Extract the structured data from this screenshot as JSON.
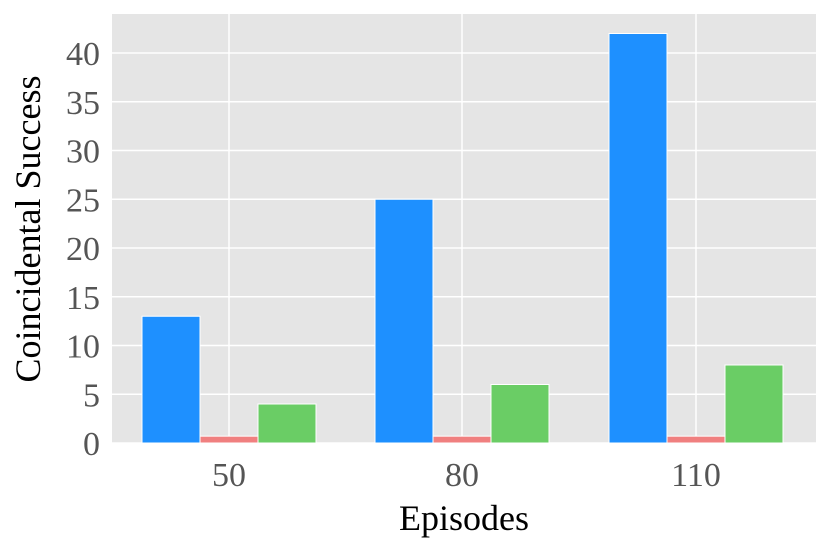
{
  "chart_data": {
    "type": "bar",
    "xlabel": "Episodes",
    "ylabel": "Coincidental Success",
    "categories": [
      "50",
      "80",
      "110"
    ],
    "series": [
      {
        "values": [
          13,
          25,
          42
        ],
        "color": "#1e90ff"
      },
      {
        "values": [
          0.7,
          0.7,
          0.7
        ],
        "color": "#f08080"
      },
      {
        "values": [
          4,
          6,
          8
        ],
        "color": "#6acd65"
      }
    ],
    "ylim": [
      0,
      44
    ],
    "yticks": [
      0,
      5,
      10,
      15,
      20,
      25,
      30,
      35,
      40
    ],
    "grid": true,
    "legend": "none"
  }
}
